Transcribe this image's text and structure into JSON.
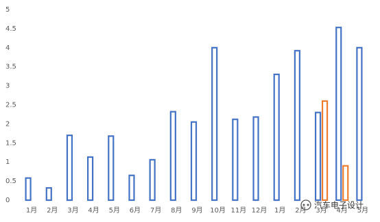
{
  "chart_data": {
    "type": "bar",
    "categories": [
      "1月",
      "2月",
      "3月",
      "4月",
      "5月",
      "6月",
      "7月",
      "8月",
      "9月",
      "10月",
      "11月",
      "12月",
      "1月",
      "2月",
      "3月",
      "4月",
      "5月"
    ],
    "series": [
      {
        "color": "#4472c4",
        "values": [
          0.58,
          0.32,
          1.7,
          1.13,
          1.68,
          0.65,
          1.06,
          2.32,
          2.05,
          4.0,
          2.12,
          2.18,
          3.3,
          3.92,
          2.3,
          4.53,
          4.0
        ]
      },
      {
        "color": "#ed7d31",
        "values": [
          null,
          null,
          null,
          null,
          null,
          null,
          null,
          null,
          null,
          null,
          null,
          null,
          null,
          null,
          2.6,
          0.9,
          null
        ]
      }
    ],
    "ylim": [
      0,
      5
    ],
    "yticks": [
      0,
      0.5,
      1,
      1.5,
      2,
      2.5,
      3,
      3.5,
      4,
      4.5,
      5
    ],
    "grid": false,
    "watermark": "汽车电子设计"
  }
}
